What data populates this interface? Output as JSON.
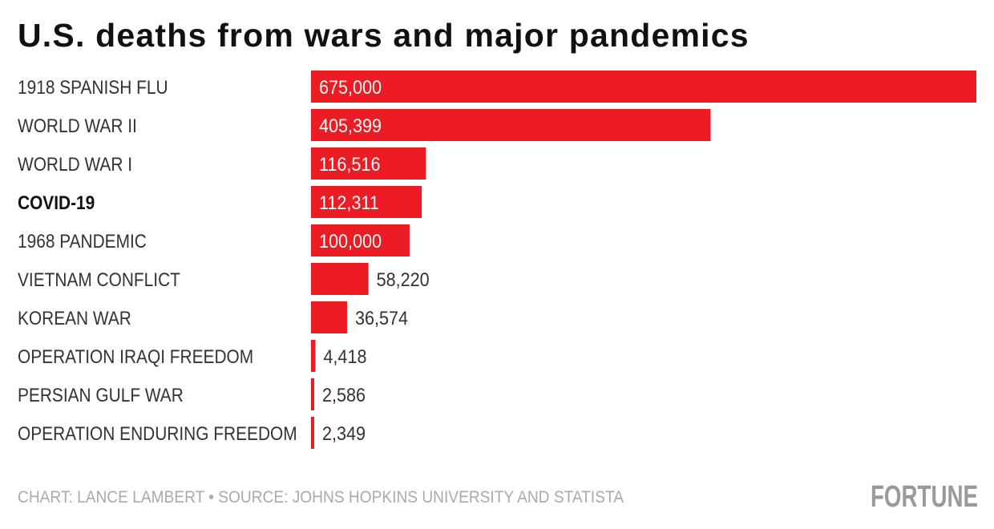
{
  "chart_data": {
    "type": "bar",
    "orientation": "horizontal",
    "title": "U.S. deaths from wars and major pandemics",
    "categories": [
      "1918 SPANISH FLU",
      "WORLD WAR II",
      "WORLD WAR I",
      "COVID-19",
      "1968 PANDEMIC",
      "VIETNAM CONFLICT",
      "KOREAN WAR",
      "OPERATION IRAQI FREEDOM",
      "PERSIAN GULF WAR",
      "OPERATION ENDURING FREEDOM"
    ],
    "values": [
      675000,
      405399,
      116516,
      112311,
      100000,
      58220,
      36574,
      4418,
      2586,
      2349
    ],
    "value_labels": [
      "675,000",
      "405,399",
      "116,516",
      "112,311",
      "100,000",
      "58,220",
      "36,574",
      "4,418",
      "2,586",
      "2,349"
    ],
    "highlighted_category": "COVID-19",
    "xlim": [
      0,
      675000
    ],
    "grid": false,
    "colors": {
      "bar": "#ed1c24",
      "label_inside": "#ffffff",
      "label_outside": "#333333"
    }
  },
  "footer": {
    "credit": "CHART: LANCE LAMBERT • SOURCE: JOHNS HOPKINS UNIVERSITY AND STATISTA",
    "logo": "FORTUNE"
  }
}
